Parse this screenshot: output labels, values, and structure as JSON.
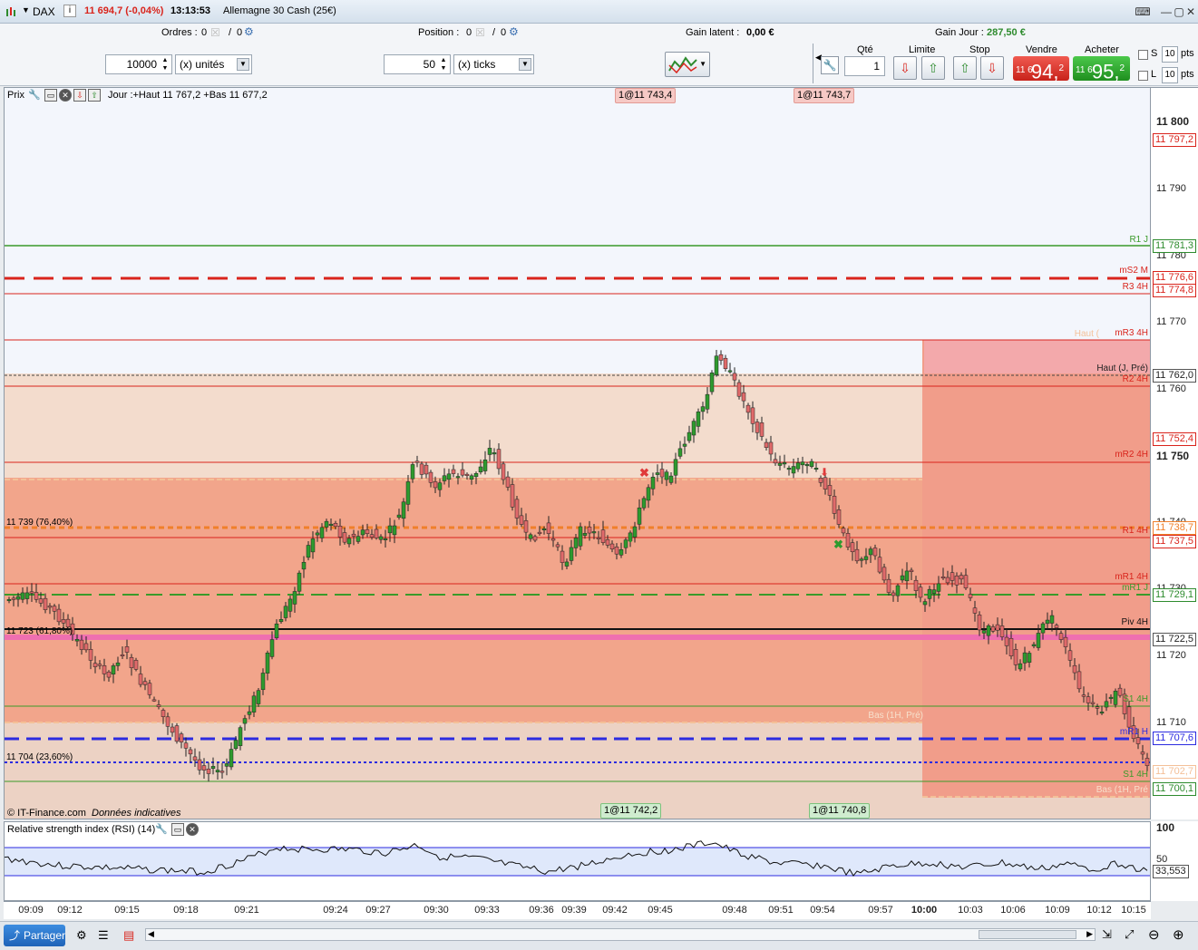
{
  "titlebar": {
    "instrument": "DAX",
    "info_icon": "i",
    "price_change": "11 694,7 (-0,04%)",
    "time": "13:13:53",
    "name": "Allemagne 30 Cash (25€)"
  },
  "status": {
    "orders_label": "Ordres :",
    "orders_a": "0",
    "orders_b": "0",
    "position_label": "Position :",
    "position_a": "0",
    "position_b": "0",
    "gain_latent_label": "Gain latent :",
    "gain_latent_value": "0,00 €",
    "gain_jour_label": "Gain Jour :",
    "gain_jour_value": "287,50 €"
  },
  "controls": {
    "quantity_value": "10000",
    "quantity_unit": "(x) unités",
    "ticks_value": "50",
    "ticks_unit": "(x) ticks"
  },
  "order_panel": {
    "qty_label": "Qté",
    "qty_value": "1",
    "limit_label": "Limite",
    "stop_label": "Stop",
    "sell_label": "Vendre",
    "buy_label": "Acheter",
    "sell_prefix": "11 6",
    "sell_main": "94,",
    "sell_sup": "2",
    "buy_prefix": "11 6",
    "buy_main": "95,",
    "buy_sup": "2",
    "s_label": "S",
    "l_label": "L",
    "s_pts_value": "10",
    "l_pts_value": "10",
    "pts": "pts"
  },
  "chart": {
    "panel_title": "Prix",
    "day_info": "Jour :+Haut 11 767,2 +Bas 11 677,2",
    "copyright": "© IT-Finance.com",
    "disclaimer": "Données indicatives",
    "fib_76": "11 739 (76,40%)",
    "fib_61": "11 723 (61,80%)",
    "fib_23": "11 704 (23,60%)",
    "top_tags": [
      "1@11 743,4",
      "1@11 743,7"
    ],
    "bottom_tags": [
      "1@11 742,2",
      "1@11 740,8"
    ],
    "level_labels": {
      "r1j": "R1 J",
      "ms2m": "mS2 M",
      "r34h": "R3 4H",
      "haut": "Haut (",
      "mr34h": "mR3 4H",
      "hautj": "Haut (J, Pré)",
      "r24h": "R2 4H",
      "mr24h": "mR2 4H",
      "r14h": "R1 4H",
      "mr14h": "mR1 4H",
      "mr1j": "mR1 J",
      "piv4h": "Piv 4H",
      "s14h": "S1 4H",
      "bas1h": "Bas (1H, Pré)",
      "mr1h": "mR1 H",
      "s14h_b": "S1 4H",
      "bas1h_b": "Bas (1H, Pré"
    },
    "y_ticks": [
      "11 800",
      "11 790",
      "11 780",
      "11 770",
      "11 760",
      "11 750",
      "11 740",
      "11 730",
      "11 720",
      "11 710"
    ],
    "y_boxes": {
      "b11797": "11 797,2",
      "b11781": "11 781,3",
      "b11776": "11 776,6",
      "b11774": "11 774,8",
      "b11762": "11 762,0",
      "b11752": "11 752,4",
      "b11738": "11 738,7",
      "b11737": "11 737,5",
      "b11729": "11 729,1",
      "b11722": "11 722,5",
      "b11707": "11 707,6",
      "b11702": "11 702,7",
      "b11700": "11 700,1"
    },
    "x_ticks": [
      "09:09",
      "09:12",
      "09:15",
      "09:18",
      "09:21",
      "09:24",
      "09:27",
      "09:30",
      "09:33",
      "09:36",
      "09:39",
      "09:42",
      "09:45",
      "09:48",
      "09:51",
      "09:54",
      "09:57",
      "10:00",
      "10:03",
      "10:06",
      "10:09",
      "10:12",
      "10:15"
    ]
  },
  "rsi": {
    "title": "Relative strength index (RSI) (14)",
    "y_top": "100",
    "y_mid": "50",
    "value": "33,553"
  },
  "bottom": {
    "share_label": "Partager"
  },
  "colors": {
    "red": "#d9241c",
    "green": "#2e8b2e",
    "blue": "#2b2be0",
    "orange": "#f0883a",
    "salmon": "#f2a088"
  }
}
